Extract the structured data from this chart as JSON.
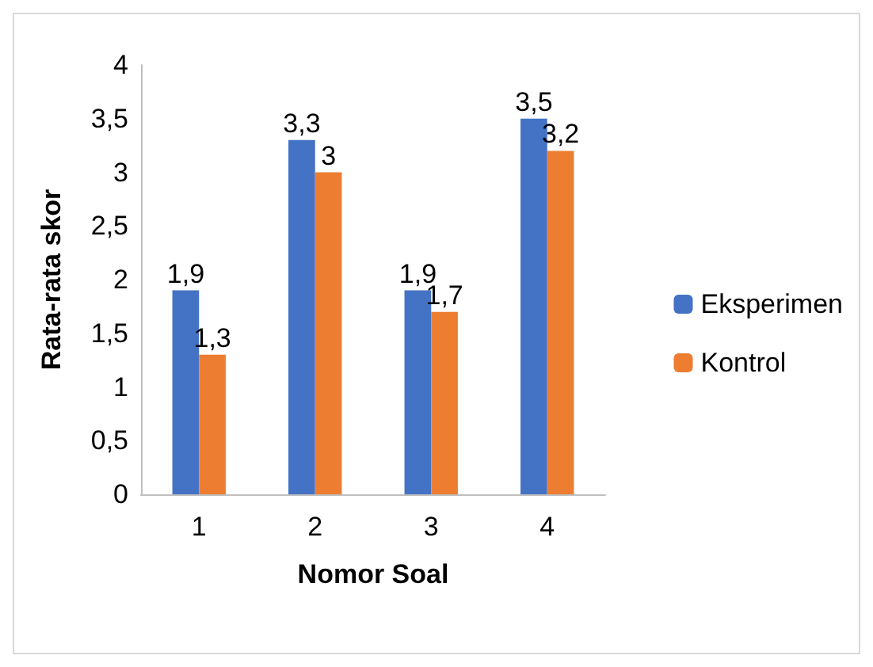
{
  "chart_data": {
    "type": "bar",
    "xlabel": "Nomor Soal",
    "ylabel": "Rata-rata skor",
    "categories": [
      "1",
      "2",
      "3",
      "4"
    ],
    "series": [
      {
        "name": "Eksperimen",
        "color": "#4472c4",
        "values": [
          1.9,
          3.3,
          1.9,
          3.5
        ],
        "value_labels": [
          "1,9",
          "3,3",
          "1,9",
          "3,5"
        ]
      },
      {
        "name": "Kontrol",
        "color": "#ed7d31",
        "values": [
          1.3,
          3,
          1.7,
          3.2
        ],
        "value_labels": [
          "1,3",
          "3",
          "1,7",
          "3,2"
        ]
      }
    ],
    "ylim": [
      0,
      4
    ],
    "yticks": [
      0,
      {
        "value": 0.5,
        "label": "0,5"
      },
      1,
      {
        "value": 1.5,
        "label": "1,5"
      },
      2,
      {
        "value": 2.5,
        "label": "2,5"
      },
      3,
      {
        "value": 3.5,
        "label": "3,5"
      },
      4
    ],
    "grid": false,
    "legend": "right"
  }
}
